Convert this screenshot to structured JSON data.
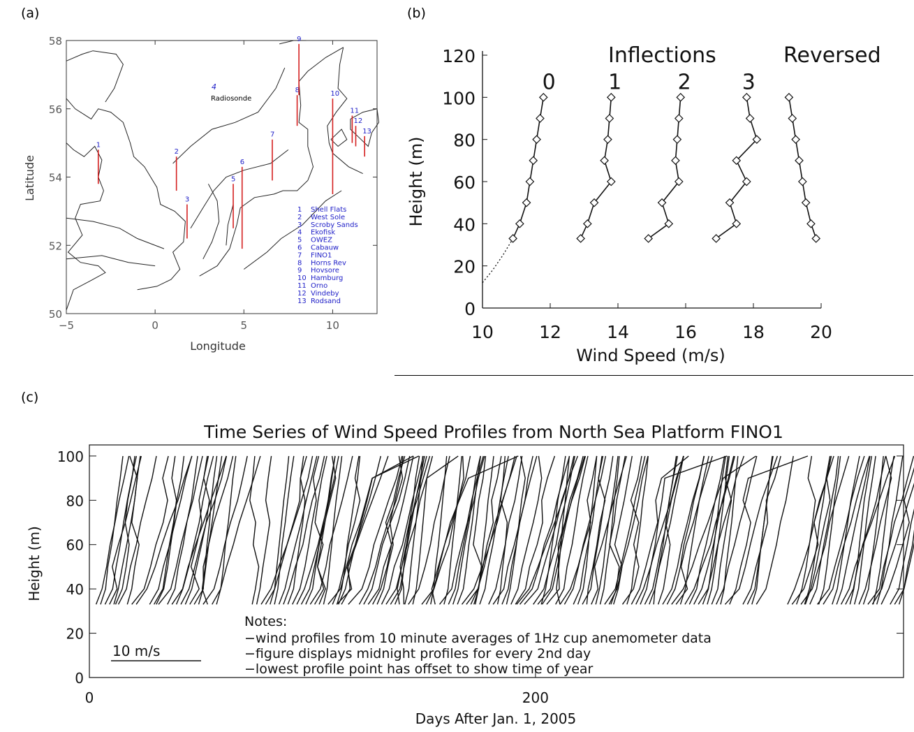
{
  "panels": {
    "a_label": "(a)",
    "b_label": "(b)",
    "c_label": "(c)"
  },
  "map_panel": {
    "xlabel": "Longitude",
    "ylabel": "Latitude",
    "x_ticks": [
      "−5",
      "0",
      "5",
      "10"
    ],
    "y_ticks": [
      "50",
      "52",
      "54",
      "56",
      "58"
    ],
    "radiosonde": {
      "number": "4",
      "label": "Radiosonde",
      "lon": 3.2,
      "lat": 56.5
    },
    "station_color": "#d42020",
    "label_color": "#2020c8",
    "stations": [
      {
        "id": "1",
        "name": "Shell Flats",
        "lon": -3.2,
        "lat": 54.3,
        "top": 54.8,
        "bottom": 53.8
      },
      {
        "id": "2",
        "name": "West Sole",
        "lon": 1.2,
        "lat": 54.0,
        "top": 54.6,
        "bottom": 53.6
      },
      {
        "id": "3",
        "name": "Scroby Sands",
        "lon": 1.8,
        "lat": 52.6,
        "top": 53.2,
        "bottom": 52.2
      },
      {
        "id": "4",
        "name": "Ekofisk",
        "lon": 3.2,
        "lat": 56.5,
        "top": 56.5,
        "bottom": 56.5
      },
      {
        "id": "5",
        "name": "OWEZ",
        "lon": 4.4,
        "lat": 53.1,
        "top": 53.8,
        "bottom": 52.5
      },
      {
        "id": "6",
        "name": "Cabauw",
        "lon": 4.9,
        "lat": 53.0,
        "top": 54.3,
        "bottom": 51.9
      },
      {
        "id": "7",
        "name": "FINO1",
        "lon": 6.6,
        "lat": 54.5,
        "top": 55.1,
        "bottom": 53.9
      },
      {
        "id": "8",
        "name": "Horns Rev",
        "lon": 8.0,
        "lat": 55.9,
        "top": 56.4,
        "bottom": 55.5
      },
      {
        "id": "9",
        "name": "Hovsore",
        "lon": 8.1,
        "lat": 57.1,
        "top": 57.9,
        "bottom": 56.4
      },
      {
        "id": "10",
        "name": "Hamburg",
        "lon": 10.0,
        "lat": 55.0,
        "top": 56.3,
        "bottom": 53.5
      },
      {
        "id": "11",
        "name": "Orno",
        "lon": 11.1,
        "lat": 55.4,
        "top": 55.8,
        "bottom": 55.0
      },
      {
        "id": "12",
        "name": "Vindeby",
        "lon": 11.3,
        "lat": 55.2,
        "top": 55.5,
        "bottom": 54.9
      },
      {
        "id": "13",
        "name": "Rodsand",
        "lon": 11.8,
        "lat": 54.9,
        "top": 55.2,
        "bottom": 54.6
      }
    ]
  },
  "chart_data": [
    {
      "type": "line",
      "panel": "b",
      "xlabel": "Wind Speed (m/s)",
      "ylabel": "Height (m)",
      "xlim": [
        10,
        20
      ],
      "ylim": [
        0,
        120
      ],
      "x_ticks": [
        "10",
        "12",
        "14",
        "16",
        "18",
        "20"
      ],
      "y_ticks": [
        "0",
        "20",
        "40",
        "60",
        "80",
        "100",
        "120"
      ],
      "annotations": {
        "inflections": "Inflections",
        "reversed": "Reversed"
      },
      "series": [
        {
          "name": "0",
          "x": [
            10.9,
            11.1,
            11.3,
            11.4,
            11.5,
            11.6,
            11.7,
            11.8,
            11.9
          ],
          "y": [
            33,
            40,
            50,
            60,
            70,
            80,
            90,
            100,
            100
          ]
        },
        {
          "name": "1",
          "x": [
            12.9,
            13.1,
            13.3,
            13.8,
            13.6,
            13.7,
            13.75,
            13.8,
            13.85
          ],
          "y": [
            33,
            40,
            50,
            60,
            70,
            80,
            90,
            100,
            100
          ]
        },
        {
          "name": "2",
          "x": [
            14.9,
            15.5,
            15.3,
            15.8,
            15.7,
            15.75,
            15.8,
            15.85,
            15.9
          ],
          "y": [
            33,
            40,
            50,
            60,
            70,
            80,
            90,
            100,
            100
          ]
        },
        {
          "name": "3",
          "x": [
            16.9,
            17.5,
            17.3,
            17.8,
            17.5,
            18.1,
            17.9,
            17.8,
            17.8
          ],
          "y": [
            33,
            40,
            50,
            60,
            70,
            80,
            90,
            100,
            100
          ]
        },
        {
          "name": "Reversed",
          "x": [
            19.85,
            19.7,
            19.55,
            19.45,
            19.35,
            19.25,
            19.15,
            19.05,
            18.95
          ],
          "y": [
            33,
            40,
            50,
            60,
            70,
            80,
            90,
            100,
            100
          ]
        }
      ],
      "extrapolation": {
        "x": [
          10.9,
          10.6,
          10.3,
          10.0
        ],
        "y": [
          33,
          25,
          18,
          12
        ]
      }
    },
    {
      "type": "line",
      "panel": "c",
      "title": "Time Series of Wind Speed Profiles from North Sea Platform FINO1",
      "xlabel": "Days After Jan. 1, 2005",
      "ylabel": "Height (m)",
      "xlim": [
        0,
        365
      ],
      "ylim": [
        0,
        105
      ],
      "x_ticks": [
        "0",
        "200"
      ],
      "y_ticks": [
        "0",
        "20",
        "40",
        "60",
        "80",
        "100"
      ],
      "scale_bar": "10 m/s",
      "notes": [
        "Notes:",
        "−wind profiles from 10 minute averages of 1Hz cup anemometer data",
        "−figure displays midnight profiles for every 2nd day",
        "−lowest profile point has offset to show time of year"
      ],
      "data_gaps_days": [
        [
          22,
          26
        ],
        [
          58,
          72
        ],
        [
          288,
          292
        ],
        [
          301,
          312
        ]
      ],
      "profile_interval_days": 2
    }
  ]
}
